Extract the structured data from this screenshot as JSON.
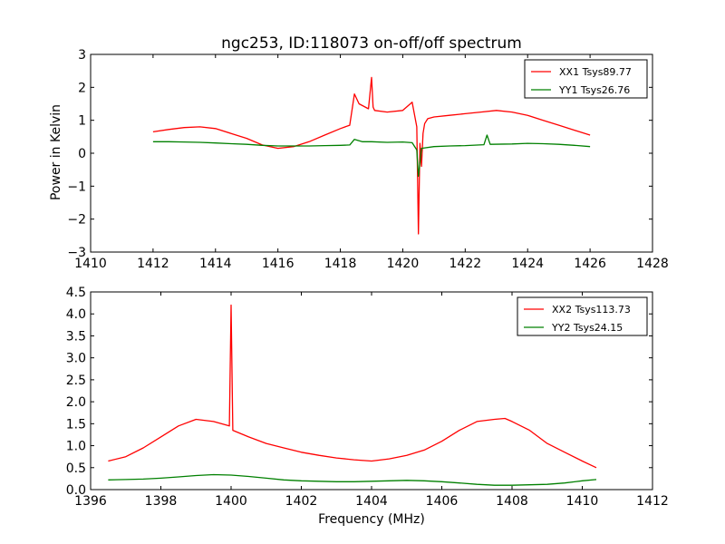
{
  "figure": {
    "title": "ngc253, ID:118073 on-off/off spectrum"
  },
  "chart_data": [
    {
      "type": "line",
      "title": "ngc253, ID:118073 on-off/off spectrum",
      "xlabel": "",
      "ylabel": "Power in Kelvin",
      "xlim": [
        1410,
        1428
      ],
      "ylim": [
        -3,
        3
      ],
      "xticks": [
        "1410",
        "1412",
        "1414",
        "1416",
        "1418",
        "1420",
        "1422",
        "1424",
        "1426",
        "1428"
      ],
      "yticks": [
        "−3",
        "−2",
        "−1",
        "0",
        "1",
        "2",
        "3"
      ],
      "grid": false,
      "legend_position": "top-right",
      "series": [
        {
          "name": "XX1 Tsys89.77",
          "color": "#ff0000",
          "x": [
            1412.0,
            1412.5,
            1413.0,
            1413.5,
            1414.0,
            1414.5,
            1415.0,
            1415.5,
            1416.0,
            1416.5,
            1417.0,
            1417.5,
            1418.0,
            1418.3,
            1418.45,
            1418.6,
            1418.9,
            1419.0,
            1419.05,
            1419.1,
            1419.5,
            1420.0,
            1420.3,
            1420.45,
            1420.5,
            1420.55,
            1420.6,
            1420.65,
            1420.7,
            1420.8,
            1421.0,
            1421.5,
            1422.0,
            1422.5,
            1423.0,
            1423.5,
            1424.0,
            1424.5,
            1425.0,
            1425.5,
            1426.0
          ],
          "y": [
            0.65,
            0.72,
            0.78,
            0.8,
            0.75,
            0.6,
            0.45,
            0.25,
            0.15,
            0.2,
            0.35,
            0.55,
            0.75,
            0.85,
            1.8,
            1.5,
            1.35,
            2.3,
            1.4,
            1.3,
            1.25,
            1.3,
            1.55,
            0.8,
            -2.45,
            0.3,
            -0.4,
            0.6,
            0.9,
            1.05,
            1.1,
            1.15,
            1.2,
            1.25,
            1.3,
            1.25,
            1.15,
            1.0,
            0.85,
            0.7,
            0.55
          ]
        },
        {
          "name": "YY1 Tsys26.76",
          "color": "#008000",
          "x": [
            1412.0,
            1412.5,
            1413.0,
            1413.5,
            1414.0,
            1414.5,
            1415.0,
            1415.5,
            1416.0,
            1416.5,
            1417.0,
            1417.5,
            1418.0,
            1418.3,
            1418.45,
            1418.7,
            1419.0,
            1419.5,
            1420.0,
            1420.3,
            1420.45,
            1420.5,
            1420.6,
            1421.0,
            1421.5,
            1422.0,
            1422.6,
            1422.7,
            1422.8,
            1423.5,
            1424.0,
            1424.5,
            1425.0,
            1425.5,
            1426.0
          ],
          "y": [
            0.35,
            0.35,
            0.34,
            0.33,
            0.31,
            0.29,
            0.27,
            0.24,
            0.22,
            0.22,
            0.22,
            0.23,
            0.24,
            0.25,
            0.42,
            0.35,
            0.35,
            0.33,
            0.34,
            0.32,
            0.1,
            -0.7,
            0.15,
            0.2,
            0.22,
            0.23,
            0.26,
            0.55,
            0.27,
            0.28,
            0.3,
            0.29,
            0.27,
            0.24,
            0.2
          ]
        }
      ]
    },
    {
      "type": "line",
      "title": "",
      "xlabel": "Frequency (MHz)",
      "ylabel": "",
      "xlim": [
        1396,
        1412
      ],
      "ylim": [
        0,
        4.5
      ],
      "xticks": [
        "1396",
        "1398",
        "1400",
        "1402",
        "1404",
        "1406",
        "1408",
        "1410",
        "1412"
      ],
      "yticks": [
        "0.0",
        "0.5",
        "1.0",
        "1.5",
        "2.0",
        "2.5",
        "3.0",
        "3.5",
        "4.0",
        "4.5"
      ],
      "grid": false,
      "legend_position": "top-right",
      "series": [
        {
          "name": "XX2 Tsys113.73",
          "color": "#ff0000",
          "x": [
            1396.5,
            1397.0,
            1397.5,
            1398.0,
            1398.5,
            1399.0,
            1399.5,
            1399.95,
            1400.0,
            1400.05,
            1400.5,
            1401.0,
            1401.5,
            1402.0,
            1402.5,
            1403.0,
            1403.5,
            1404.0,
            1404.5,
            1405.0,
            1405.5,
            1406.0,
            1406.5,
            1407.0,
            1407.5,
            1407.8,
            1408.0,
            1408.5,
            1409.0,
            1409.5,
            1410.0,
            1410.4
          ],
          "y": [
            0.65,
            0.75,
            0.95,
            1.2,
            1.45,
            1.6,
            1.55,
            1.45,
            4.2,
            1.35,
            1.2,
            1.05,
            0.95,
            0.85,
            0.78,
            0.72,
            0.68,
            0.65,
            0.7,
            0.78,
            0.9,
            1.1,
            1.35,
            1.55,
            1.6,
            1.62,
            1.55,
            1.35,
            1.05,
            0.85,
            0.65,
            0.5
          ]
        },
        {
          "name": "YY2 Tsys24.15",
          "color": "#008000",
          "x": [
            1396.5,
            1397.0,
            1397.5,
            1398.0,
            1398.5,
            1399.0,
            1399.5,
            1400.0,
            1400.5,
            1401.0,
            1401.5,
            1402.0,
            1402.5,
            1403.0,
            1403.5,
            1404.0,
            1404.5,
            1405.0,
            1405.5,
            1406.0,
            1406.5,
            1407.0,
            1407.5,
            1408.0,
            1408.5,
            1409.0,
            1409.5,
            1410.0,
            1410.4
          ],
          "y": [
            0.22,
            0.23,
            0.24,
            0.26,
            0.29,
            0.32,
            0.34,
            0.33,
            0.3,
            0.26,
            0.22,
            0.2,
            0.19,
            0.18,
            0.18,
            0.19,
            0.2,
            0.21,
            0.2,
            0.18,
            0.15,
            0.12,
            0.1,
            0.1,
            0.11,
            0.12,
            0.15,
            0.2,
            0.23
          ]
        }
      ]
    }
  ]
}
